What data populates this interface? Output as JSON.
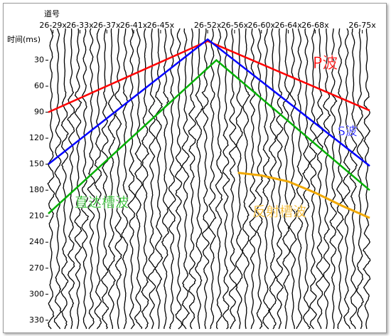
{
  "chart_data": {
    "type": "seismic",
    "x_label": "道号",
    "y_label": "时间(ms)",
    "xlim": [
      28.3,
      76.1
    ],
    "xticks": [
      {
        "value": 29,
        "label": "26-29x"
      },
      {
        "value": 33,
        "label": "26-33x"
      },
      {
        "value": 37,
        "label": "26-37x"
      },
      {
        "value": 41,
        "label": "26-41x"
      },
      {
        "value": 45,
        "label": "26-45x"
      },
      {
        "value": 52,
        "label": "26-52x"
      },
      {
        "value": 56,
        "label": "26-56x"
      },
      {
        "value": 60,
        "label": "26-60x"
      },
      {
        "value": 64,
        "label": "26-64x"
      },
      {
        "value": 68,
        "label": "26-68x"
      },
      {
        "value": 75,
        "label": "26-75x"
      }
    ],
    "ylim": [
      0,
      340
    ],
    "yticks": [
      30,
      60,
      90,
      120,
      150,
      180,
      210,
      240,
      270,
      300,
      330
    ],
    "series": [
      {
        "name": "P波",
        "color": "#ff0000",
        "x": [
          28.3,
          52,
          76.1
        ],
        "values": [
          90,
          8,
          88
        ]
      },
      {
        "name": "S波",
        "color": "#0000ff",
        "x": [
          28.3,
          52,
          76.1
        ],
        "values": [
          150,
          6,
          152
        ]
      },
      {
        "name": "直达槽波",
        "color": "#00b000",
        "x": [
          28.3,
          53.3,
          76.1
        ],
        "values": [
          207,
          30,
          180
        ]
      },
      {
        "name": "反射槽波",
        "color": "#f0a800",
        "x": [
          56.5,
          60,
          64,
          68,
          72,
          76.1
        ],
        "values": [
          160,
          163,
          170,
          183,
          198,
          212
        ]
      }
    ]
  }
}
